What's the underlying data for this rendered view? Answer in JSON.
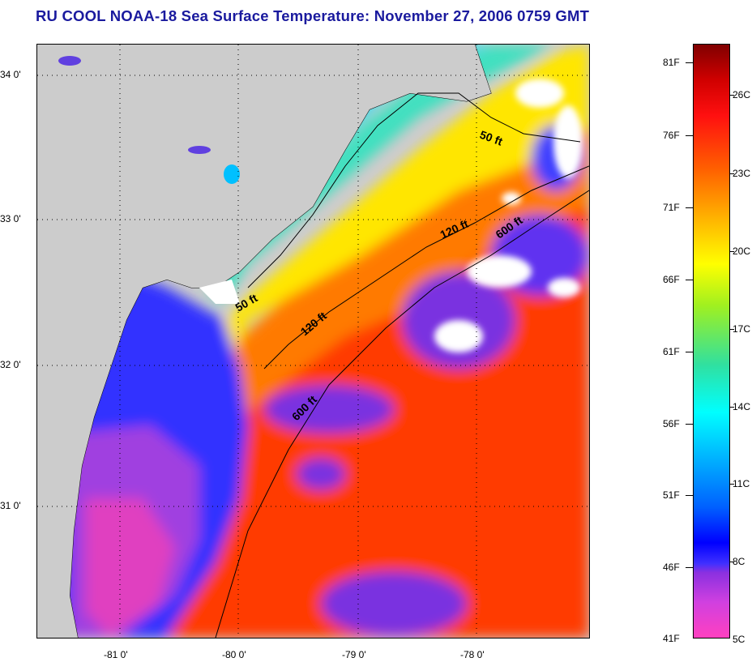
{
  "title": "RU COOL  NOAA-18  Sea Surface Temperature:  November 27, 2006 0759 GMT",
  "latitude_labels": [
    "34 0'",
    "33 0'",
    "32 0'",
    "31 0'"
  ],
  "longitude_labels": [
    "-81 0'",
    "-80 0'",
    "-79 0'",
    "-78 0'"
  ],
  "contour_labels": {
    "c50_north": "50 ft",
    "c50_south": "50 ft",
    "c120_north": "120 ft",
    "c120_south": "120 ft",
    "c600_north": "600 ft",
    "c600_south": "600 ft"
  },
  "colorbar": {
    "fahrenheit": [
      "81F",
      "76F",
      "71F",
      "66F",
      "61F",
      "56F",
      "51F",
      "46F",
      "41F"
    ],
    "celsius": [
      "26C",
      "23C",
      "20C",
      "17C",
      "14C",
      "11C",
      "8C",
      "5C"
    ]
  },
  "colors": {
    "land": "#cccccc",
    "warm": "#ff3a00",
    "cold": "#2020ff",
    "cloud": "#ffffff",
    "title": "#1a1a9e"
  }
}
